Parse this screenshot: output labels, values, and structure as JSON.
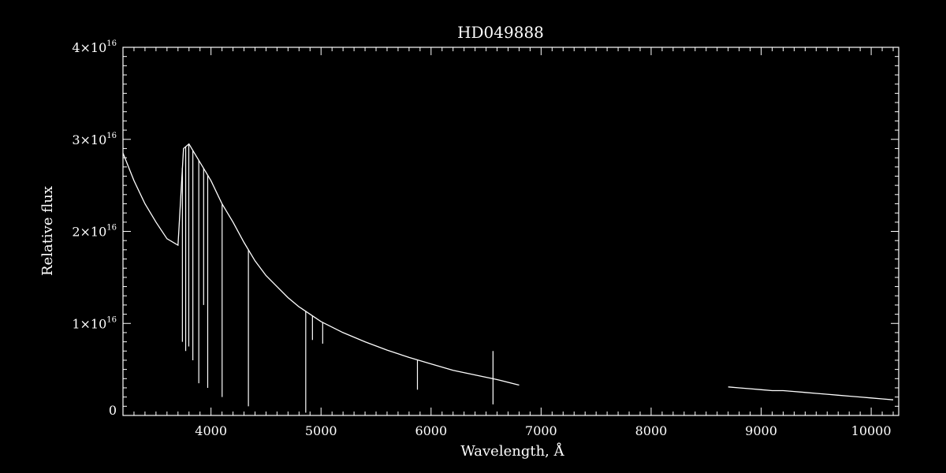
{
  "chart_data": {
    "type": "line",
    "title": "HD049888",
    "xlabel": "Wavelength, Å",
    "ylabel": "Relative flux",
    "xlim": [
      3200,
      10250
    ],
    "ylim": [
      0,
      4e+16
    ],
    "x_ticks": [
      4000,
      5000,
      6000,
      7000,
      8000,
      9000,
      10000
    ],
    "x_tick_labels": [
      "4000",
      "5000",
      "6000",
      "7000",
      "8000",
      "9000",
      "10000"
    ],
    "y_ticks": [
      {
        "value": 0,
        "base": "0",
        "exp": ""
      },
      {
        "value": 1e+16,
        "base": "1×10",
        "exp": "16"
      },
      {
        "value": 2e+16,
        "base": "2×10",
        "exp": "16"
      },
      {
        "value": 3e+16,
        "base": "3×10",
        "exp": "16"
      },
      {
        "value": 4e+16,
        "base": "4×10",
        "exp": "16"
      }
    ],
    "grid": false,
    "colors": {
      "background": "#000000",
      "foreground": "#ffffff"
    },
    "series": [
      {
        "segment": "blue",
        "x": [
          3200,
          3300,
          3400,
          3500,
          3600,
          3700,
          3750,
          3800,
          3850,
          3900,
          3950,
          4000,
          4100,
          4200,
          4300,
          4400,
          4500,
          4600,
          4700,
          4800,
          4900,
          5000,
          5200,
          5400,
          5600,
          5800,
          6000,
          6200,
          6400,
          6600,
          6800
        ],
        "y": [
          2.85e+16,
          2.55e+16,
          2.3e+16,
          2.1e+16,
          1.92e+16,
          1.85e+16,
          2.9e+16,
          2.95e+16,
          2.85e+16,
          2.75e+16,
          2.65e+16,
          2.55e+16,
          2.3e+16,
          2.1e+16,
          1.88e+16,
          1.68e+16,
          1.52e+16,
          1.4e+16,
          1.28e+16,
          1.18e+16,
          1.1e+16,
          1.02e+16,
          9000000000000000.0,
          8000000000000000.0,
          7100000000000000.0,
          6300000000000000.0,
          5600000000000000.0,
          4900000000000000.0,
          4400000000000000.0,
          3900000000000000.0,
          3300000000000000.0
        ]
      },
      {
        "segment": "red",
        "x": [
          8700,
          8800,
          8900,
          9000,
          9100,
          9200,
          9300,
          9400,
          9500,
          9600,
          9700,
          9800,
          9900,
          10000,
          10100,
          10200
        ],
        "y": [
          3100000000000000.0,
          3000000000000000.0,
          2900000000000000.0,
          2800000000000000.0,
          2700000000000000.0,
          2700000000000000.0,
          2600000000000000.0,
          2500000000000000.0,
          2400000000000000.0,
          2300000000000000.0,
          2200000000000000.0,
          2100000000000000.0,
          2000000000000000.0,
          1900000000000000.0,
          1800000000000000.0,
          1700000000000000.0
        ]
      }
    ],
    "absorption_lines": [
      {
        "x": 3740,
        "min": 8000000000000000.0
      },
      {
        "x": 3770,
        "min": 7000000000000000.0
      },
      {
        "x": 3798,
        "min": 7500000000000000.0
      },
      {
        "x": 3835,
        "min": 6000000000000000.0
      },
      {
        "x": 3889,
        "min": 3500000000000000.0
      },
      {
        "x": 3933,
        "min": 1.2e+16
      },
      {
        "x": 3970,
        "min": 3000000000000000.0
      },
      {
        "x": 4101,
        "min": 2000000000000000.0
      },
      {
        "x": 4340,
        "min": 1000000000000000.0
      },
      {
        "x": 4861,
        "min": 300000000000000.0
      },
      {
        "x": 4922,
        "min": 8200000000000000.0
      },
      {
        "x": 5015,
        "min": 7800000000000000.0
      },
      {
        "x": 5876,
        "min": 2800000000000000.0
      },
      {
        "x": 6563,
        "min": 1200000000000000.0
      }
    ],
    "emission_lines": [
      {
        "x": 6563,
        "max": 7000000000000000.0
      }
    ]
  }
}
